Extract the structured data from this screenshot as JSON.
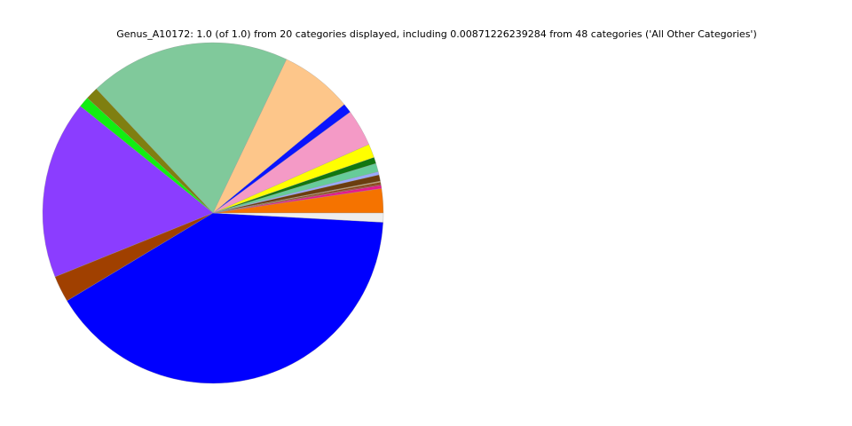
{
  "chart_data": {
    "type": "pie",
    "title": "Genus_A10172: 1.0 (of 1.0) from 20 categories displayed, including 0.00871226239284 from 48 categories ('All Other Categories')",
    "values": [
      0.023,
      0.003,
      0.001,
      0.002,
      0.001,
      0.006,
      0.003,
      0.008,
      0.006,
      0.013,
      0.035,
      0.009,
      0.069,
      0.191,
      0.012,
      0.01,
      0.169,
      0.025,
      0.405,
      0.00871226239284
    ],
    "colors": [
      "#f57300",
      "#e6198c",
      "#a0262a",
      "#8b4513",
      "#c8a064",
      "#6b3d0f",
      "#99aaff",
      "#66cc99",
      "#117711",
      "#ffff00",
      "#f49ac6",
      "#0a14ff",
      "#fdc68a",
      "#80c99b",
      "#7f7f10",
      "#11ee11",
      "#8b3dff",
      "#a04000",
      "#0000ff",
      "#eeeeee"
    ],
    "start_angle": 0
  }
}
